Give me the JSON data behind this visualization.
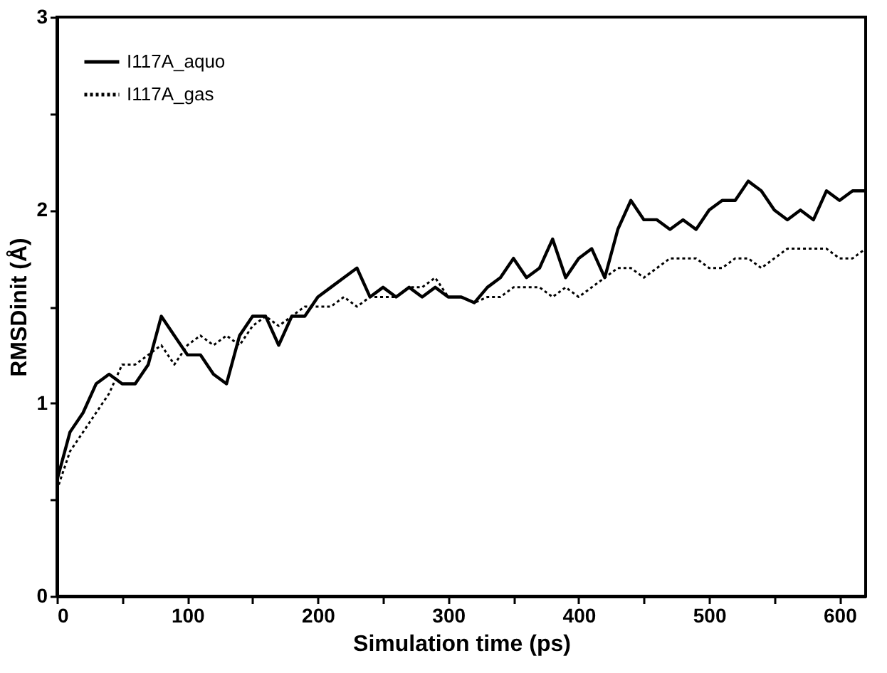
{
  "chart_data": {
    "type": "line",
    "xlabel": "Simulation time (ps)",
    "ylabel": "RMSDinit (Å)",
    "x": [
      0,
      10,
      20,
      30,
      40,
      50,
      60,
      70,
      80,
      90,
      100,
      110,
      120,
      130,
      140,
      150,
      160,
      170,
      180,
      190,
      200,
      210,
      220,
      230,
      240,
      250,
      260,
      270,
      280,
      290,
      300,
      310,
      320,
      330,
      340,
      350,
      360,
      370,
      380,
      390,
      400,
      410,
      420,
      430,
      440,
      450,
      460,
      470,
      480,
      490,
      500,
      510,
      520,
      530,
      540,
      550,
      560,
      570,
      580,
      590,
      600,
      610,
      620
    ],
    "series": [
      {
        "name": "I117A_aquo",
        "color": "#000000",
        "line_style": "solid",
        "values": [
          0.6,
          0.85,
          0.95,
          1.1,
          1.15,
          1.1,
          1.1,
          1.2,
          1.45,
          1.35,
          1.25,
          1.25,
          1.15,
          1.1,
          1.35,
          1.45,
          1.45,
          1.3,
          1.45,
          1.45,
          1.55,
          1.6,
          1.65,
          1.7,
          1.55,
          1.6,
          1.55,
          1.6,
          1.55,
          1.6,
          1.55,
          1.55,
          1.52,
          1.6,
          1.65,
          1.75,
          1.65,
          1.7,
          1.85,
          1.65,
          1.75,
          1.8,
          1.65,
          1.9,
          2.05,
          1.95,
          1.95,
          1.9,
          1.95,
          1.9,
          2.0,
          2.05,
          2.05,
          2.15,
          2.1,
          2.0,
          1.95,
          2.0,
          1.95,
          2.1,
          2.05,
          2.1,
          2.1
        ]
      },
      {
        "name": "I117A_gas",
        "color": "#000000",
        "line_style": "dotted",
        "values": [
          0.55,
          0.75,
          0.85,
          0.95,
          1.05,
          1.2,
          1.2,
          1.25,
          1.3,
          1.2,
          1.3,
          1.35,
          1.3,
          1.35,
          1.3,
          1.4,
          1.45,
          1.4,
          1.45,
          1.5,
          1.5,
          1.5,
          1.55,
          1.5,
          1.55,
          1.55,
          1.55,
          1.6,
          1.6,
          1.65,
          1.55,
          1.55,
          1.52,
          1.55,
          1.55,
          1.6,
          1.6,
          1.6,
          1.55,
          1.6,
          1.55,
          1.6,
          1.65,
          1.7,
          1.7,
          1.65,
          1.7,
          1.75,
          1.75,
          1.75,
          1.7,
          1.7,
          1.75,
          1.75,
          1.7,
          1.75,
          1.8,
          1.8,
          1.8,
          1.8,
          1.75,
          1.75,
          1.8
        ]
      }
    ],
    "xlim": [
      0,
      620
    ],
    "ylim": [
      0,
      3
    ],
    "xticks": [
      0,
      {
        "value": 50,
        "label": null
      },
      100,
      {
        "value": 150,
        "label": null
      },
      200,
      {
        "value": 250,
        "label": null
      },
      300,
      {
        "value": 350,
        "label": null
      },
      400,
      {
        "value": 450,
        "label": null
      },
      500,
      {
        "value": 550,
        "label": null
      },
      600
    ],
    "yticks": [
      0,
      {
        "value": 0.5,
        "label": null
      },
      1,
      {
        "value": 1.5,
        "label": null
      },
      2,
      {
        "value": 2.5,
        "label": null
      },
      3
    ],
    "legend": "top left",
    "grid": false
  }
}
